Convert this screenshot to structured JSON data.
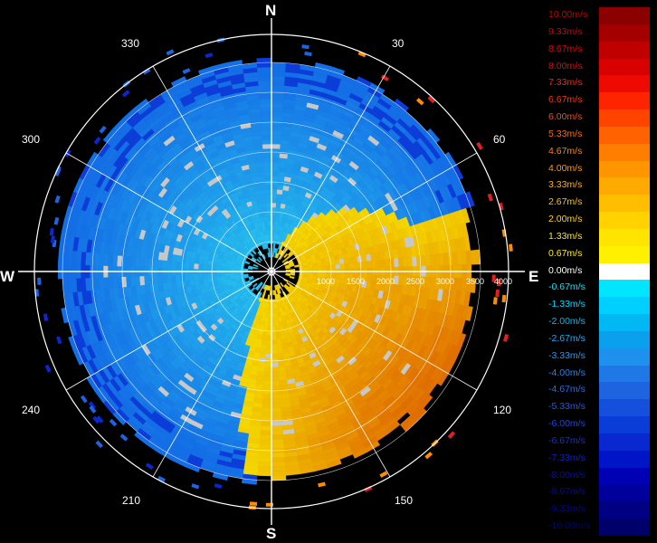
{
  "compass": {
    "north": "N",
    "east": "E",
    "south": "S",
    "west": "W"
  },
  "bearings": [
    "30",
    "60",
    "120",
    "150",
    "210",
    "240",
    "300",
    "330"
  ],
  "range_labels": [
    "1000",
    "1500",
    "2000",
    "2500",
    "3000",
    "3500",
    "4000"
  ],
  "legend": {
    "labels": [
      "10.00m/s",
      "9.33m/s",
      "8.67m/s",
      "8.00m/s",
      "7.33m/s",
      "6.67m/s",
      "6.00m/s",
      "5.33m/s",
      "4.67m/s",
      "4.00m/s",
      "3.33m/s",
      "2.67m/s",
      "2.00m/s",
      "1.33m/s",
      "0.67m/s",
      "0.00m/s",
      "-0.67m/s",
      "-1.33m/s",
      "-2.00m/s",
      "-2.67m/s",
      "-3.33m/s",
      "-4.00m/s",
      "-4.67m/s",
      "-5.33m/s",
      "-6.00m/s",
      "-6.67m/s",
      "-7.33m/s",
      "-8.00m/s",
      "-8.67m/s",
      "-9.33m/s",
      "-10.00m/s"
    ],
    "colors": [
      "#8b0000",
      "#a50000",
      "#c00000",
      "#d80000",
      "#ee0a00",
      "#ff2400",
      "#ff4400",
      "#ff6200",
      "#ff7e00",
      "#ff9600",
      "#ffaa00",
      "#ffbe00",
      "#ffd200",
      "#ffe400",
      "#fff000",
      "#ffffff",
      "#00e6ff",
      "#00d0ff",
      "#00b8f4",
      "#0aa0ee",
      "#1e90ee",
      "#1e78e6",
      "#1e64e0",
      "#1450dc",
      "#0a3cd8",
      "#0a28d0",
      "#0014c8",
      "#0000b4",
      "#00009c",
      "#000082",
      "#00006a"
    ],
    "label_colors": [
      "#c00000",
      "#d00000",
      "#e00000",
      "#f00000",
      "#ff2000",
      "#ff3000",
      "#ff4a00",
      "#ff6a00",
      "#ff8400",
      "#ff9a00",
      "#ffb000",
      "#ffc400",
      "#ffd800",
      "#ffe800",
      "#fff000",
      "#ffffff",
      "#00e8ff",
      "#00d4ff",
      "#00bcf4",
      "#22a8f0",
      "#2a96ee",
      "#2a80e8",
      "#2a6ce2",
      "#2458dc",
      "#1c44d6",
      "#1432cc",
      "#0c20c0",
      "#0010ae",
      "#000c98",
      "#000a84",
      "#00086e"
    ]
  },
  "colors": {
    "positive": "#ff9600",
    "negative": "#1e90ee",
    "grid": "#ffffff"
  }
}
